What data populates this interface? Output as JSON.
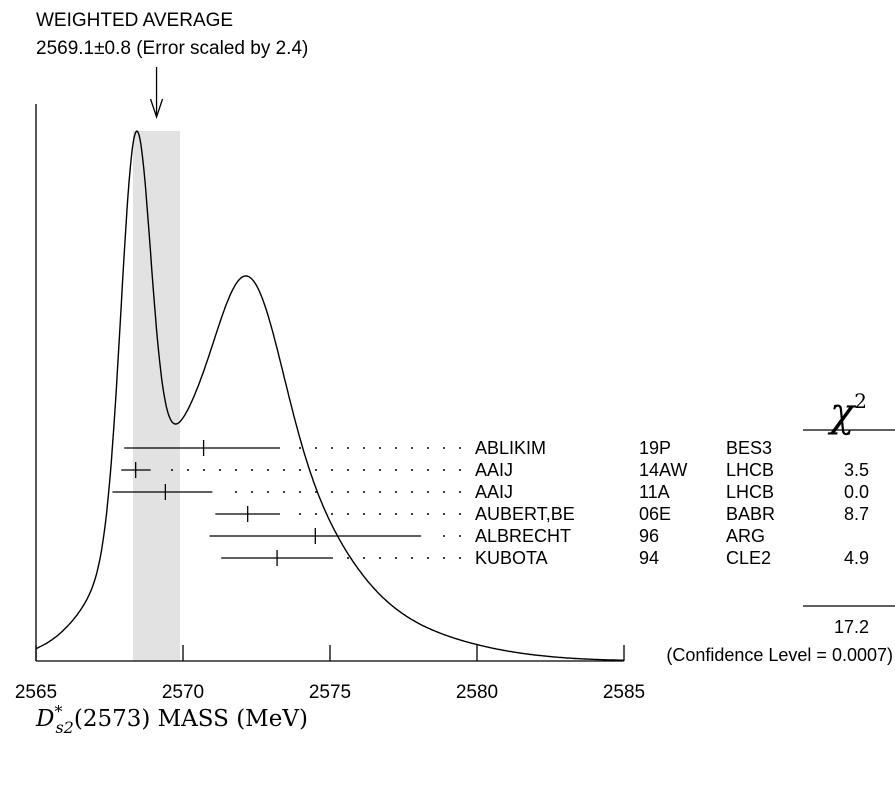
{
  "header": {
    "title": "WEIGHTED AVERAGE",
    "subtitle": "2569.1±0.8 (Error scaled by 2.4)"
  },
  "chart_data": {
    "type": "ideogram",
    "xlabel_main": "D",
    "xlabel_sup": "*",
    "xlabel_sub": "s2",
    "xlabel_rest": "(2573) MASS (MeV)",
    "xlim": [
      2565,
      2585
    ],
    "x_ticks": [
      "2565",
      "2570",
      "2575",
      "2580",
      "2585"
    ],
    "weighted_average": {
      "value": 2569.1,
      "band": [
        2568.3,
        2569.9
      ]
    },
    "chi2_header": "χ",
    "chi2_sup": "2",
    "measurements": [
      {
        "author": "ABLIKIM",
        "year": "19P",
        "experiment": "BES3",
        "chi2": "",
        "value": 2570.7,
        "low": 2568.0,
        "high": 2573.3
      },
      {
        "author": "AAIJ",
        "year": "14AW",
        "experiment": "LHCB",
        "chi2": "3.5",
        "value": 2568.39,
        "low": 2567.9,
        "high": 2568.9
      },
      {
        "author": "AAIJ",
        "year": "11A",
        "experiment": "LHCB",
        "chi2": "0.0",
        "value": 2569.4,
        "low": 2567.6,
        "high": 2571.0
      },
      {
        "author": "AUBERT,BE",
        "year": "06E",
        "experiment": "BABR",
        "chi2": "8.7",
        "value": 2572.2,
        "low": 2571.1,
        "high": 2573.3
      },
      {
        "author": "ALBRECHT",
        "year": "96",
        "experiment": "ARG",
        "chi2": "",
        "value": 2574.5,
        "low": 2570.9,
        "high": 2578.1
      },
      {
        "author": "KUBOTA",
        "year": "94",
        "experiment": "CLE2",
        "chi2": "4.9",
        "value": 2573.2,
        "low": 2571.3,
        "high": 2575.1
      }
    ],
    "chi2_total": "17.2",
    "confidence_level": "(Confidence Level = 0.0007)"
  }
}
